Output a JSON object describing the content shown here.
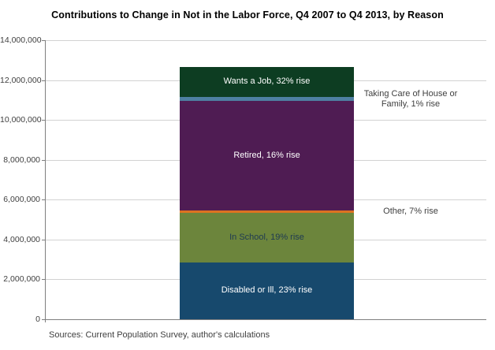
{
  "source_note": "Sources: Current Population Survey, author's calculations",
  "chart_data": {
    "type": "bar",
    "variant": "single-stacked-column",
    "title": "Contributions to Change in Not in the Labor Force, Q4 2007 to Q4 2013, by Reason",
    "xlabel": "",
    "ylabel": "",
    "ylim": [
      0,
      14000000
    ],
    "ytick_step": 2000000,
    "ytick_labels": [
      "0",
      "2,000,000",
      "4,000,000",
      "6,000,000",
      "8,000,000",
      "10,000,000",
      "12,000,000",
      "14,000,000"
    ],
    "grid": true,
    "legend": "none",
    "total_change_estimate": 12640000,
    "series": [
      {
        "name": "Disabled or Ill",
        "value": 2850000,
        "label": "Disabled or Ill, 23% rise",
        "color": "#17496d",
        "label_placement": "inside",
        "label_color": "#ffffff"
      },
      {
        "name": "In School",
        "value": 2500000,
        "label": "In School, 19% rise",
        "color": "#6c853c",
        "label_placement": "inside",
        "label_color": "#1f3a52"
      },
      {
        "name": "Other",
        "value": 120000,
        "label": "Other, 7% rise",
        "color": "#dd7321",
        "label_placement": "outside-right",
        "label_color": "#3f3f3f"
      },
      {
        "name": "Retired",
        "value": 5500000,
        "label": "Retired, 16% rise",
        "color": "#4f1c53",
        "label_placement": "inside",
        "label_color": "#ffffff"
      },
      {
        "name": "Taking Care of House or Family",
        "value": 200000,
        "label": "Taking Care of House or Family, 1% rise",
        "color": "#4e80a2",
        "label_placement": "outside-right",
        "label_color": "#3f3f3f"
      },
      {
        "name": "Wants a Job",
        "value": 1470000,
        "label": "Wants a Job, 32% rise",
        "color": "#0d3d22",
        "label_placement": "inside",
        "label_color": "#ffffff"
      }
    ]
  }
}
